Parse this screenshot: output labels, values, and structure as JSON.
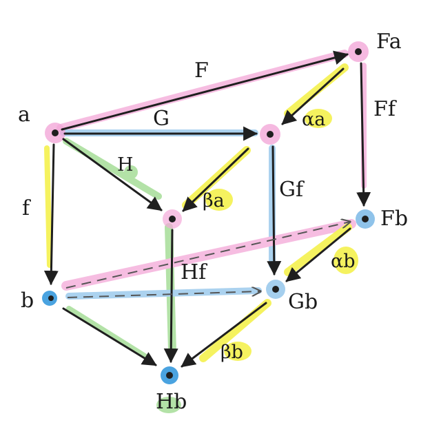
{
  "palette": {
    "pink": "#f3a8d8",
    "blue": "#8fc3ea",
    "yellow": "#f2ee2a",
    "green": "#9ad98a",
    "ink": "#1f1f1f"
  },
  "objects": {
    "a": "a",
    "b": "b",
    "Fa": "Fa",
    "Fb": "Fb",
    "Ga": "",
    "Gb": "Gb",
    "Ha": "",
    "Hb": "Hb"
  },
  "morphisms": {
    "F": "F",
    "G": "G",
    "H": "H",
    "f": "f",
    "Ff": "Ff",
    "Gf": "Gf",
    "Hf": "Hf"
  },
  "transformations": {
    "alpha_a": "αa",
    "beta_a": "βa",
    "alpha_b": "αb",
    "beta_b": "βb"
  }
}
